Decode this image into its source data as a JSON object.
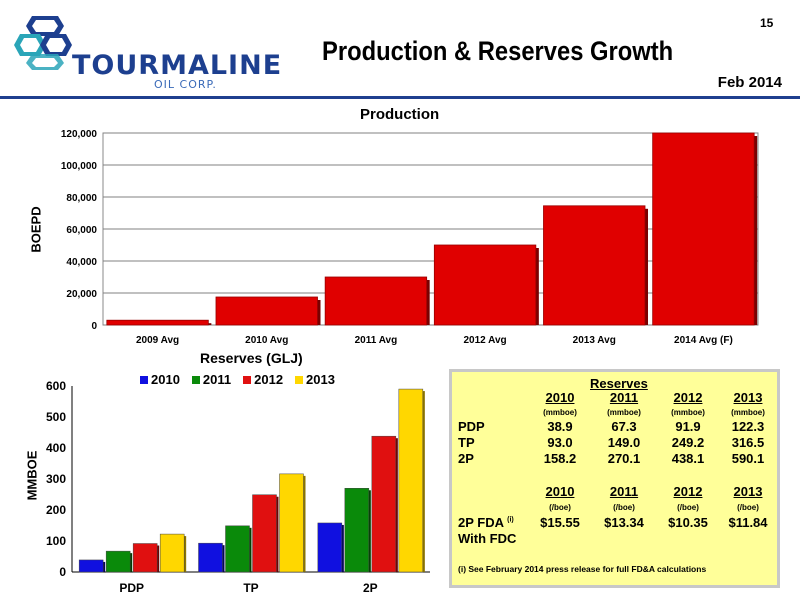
{
  "page": {
    "number": "15",
    "title": "Production & Reserves Growth",
    "date": "Feb 2014"
  },
  "logo": {
    "name": "TOURMALINE",
    "sub": "OIL CORP."
  },
  "colors": {
    "brand_blue": "#1d3f8f",
    "bar_red": "#e00000",
    "series_2010": "#1010e0",
    "series_2011": "#0a8a0a",
    "series_2012": "#e01010",
    "series_2013": "#ffd700",
    "reserves_box_bg": "#ffff99"
  },
  "chart_data": [
    {
      "type": "bar",
      "title": "Production",
      "ylabel": "BOEPD",
      "xlabel": "",
      "categories": [
        "2009 Avg",
        "2010 Avg",
        "2011 Avg",
        "2012 Avg",
        "2013 Avg",
        "2014 Avg (F)"
      ],
      "values": [
        3000,
        17500,
        30000,
        50000,
        74500,
        120000
      ],
      "ylim": [
        0,
        120000
      ],
      "yticks": [
        "0",
        "20,000",
        "40,000",
        "60,000",
        "80,000",
        "100,000",
        "120,000"
      ],
      "grid": true
    },
    {
      "type": "bar",
      "title": "Reserves (GLJ)",
      "ylabel": "MMBOE",
      "xlabel": "",
      "categories": [
        "PDP",
        "TP",
        "2P"
      ],
      "series": [
        {
          "name": "2010",
          "values": [
            38.9,
            93.0,
            158.2
          ]
        },
        {
          "name": "2011",
          "values": [
            67.3,
            149.0,
            270.1
          ]
        },
        {
          "name": "2012",
          "values": [
            91.9,
            249.2,
            438.1
          ]
        },
        {
          "name": "2013",
          "values": [
            122.3,
            316.5,
            590.1
          ]
        }
      ],
      "ylim": [
        0,
        600
      ],
      "yticks": [
        "0",
        "100",
        "200",
        "300",
        "400",
        "500",
        "600"
      ],
      "legend": "top",
      "grid": false
    }
  ],
  "reserves_table": {
    "title": "Reserves",
    "years": [
      "2010",
      "2011",
      "2012",
      "2013"
    ],
    "units_mmboe": "(mmboe)",
    "rows": [
      {
        "label": "PDP",
        "values": [
          "38.9",
          "67.3",
          "91.9",
          "122.3"
        ]
      },
      {
        "label": "TP",
        "values": [
          "93.0",
          "149.0",
          "249.2",
          "316.5"
        ]
      },
      {
        "label": "2P",
        "values": [
          "158.2",
          "270.1",
          "438.1",
          "590.1"
        ]
      }
    ],
    "units_boe": "(/boe)",
    "fda_label": "2P FDA",
    "fda_footnote_mark": "(i)",
    "fda_label2": "With FDC",
    "fda_values": [
      "$15.55",
      "$13.34",
      "$10.35",
      "$11.84"
    ],
    "footnote": "(i)  See February 2014 press release for full FD&A calculations"
  }
}
